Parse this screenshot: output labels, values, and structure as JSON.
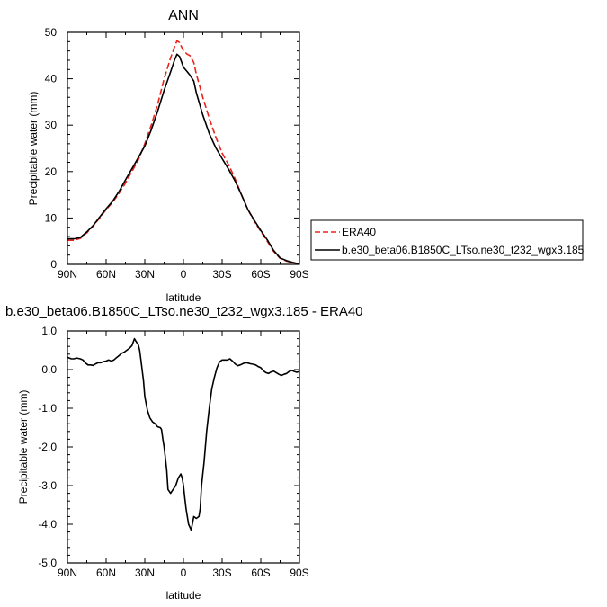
{
  "chart_data": [
    {
      "type": "line",
      "title": "ANN",
      "xlabel": "latitude",
      "ylabel": "Precipitable water (mm)",
      "x_ticks": [
        "90N",
        "60N",
        "30N",
        "0",
        "30S",
        "60S",
        "90S"
      ],
      "y_ticks": [
        "0",
        "10",
        "20",
        "30",
        "40",
        "50"
      ],
      "xlim": [
        90,
        -90
      ],
      "ylim": [
        0,
        50
      ],
      "legend_position": "right",
      "series": [
        {
          "name": "ERA40",
          "color": "#e8231c",
          "dash": "dashed",
          "x": [
            90,
            85,
            80,
            75,
            70,
            65,
            60,
            55,
            50,
            45,
            40,
            35,
            30,
            25,
            20,
            15,
            10,
            7,
            5,
            3,
            0,
            -3,
            -5,
            -8,
            -10,
            -15,
            -20,
            -25,
            -30,
            -35,
            -40,
            -45,
            -50,
            -55,
            -60,
            -65,
            -70,
            -75,
            -80,
            -85,
            -90
          ],
          "y": [
            5.2,
            5.2,
            5.6,
            6.8,
            8.3,
            10.0,
            11.8,
            13.4,
            15.3,
            17.5,
            20.0,
            22.5,
            26.0,
            30.0,
            34.5,
            40.0,
            44.5,
            46.8,
            48.2,
            47.8,
            46.0,
            45.3,
            45.0,
            43.5,
            41.0,
            36.0,
            31.5,
            27.5,
            24.0,
            21.5,
            18.5,
            15.0,
            11.8,
            9.3,
            7.1,
            5.0,
            2.8,
            1.3,
            0.7,
            0.3,
            0.1
          ]
        },
        {
          "name": "b.e30_beta06.B1850C_LTso.ne30_t232_wgx3.185",
          "color": "#000000",
          "dash": "solid",
          "x": [
            90,
            85,
            80,
            75,
            70,
            65,
            60,
            55,
            50,
            45,
            40,
            35,
            30,
            25,
            20,
            15,
            10,
            7,
            5,
            3,
            0,
            -3,
            -5,
            -8,
            -10,
            -15,
            -20,
            -25,
            -30,
            -35,
            -40,
            -45,
            -50,
            -55,
            -60,
            -65,
            -70,
            -75,
            -80,
            -85,
            -90
          ],
          "y": [
            5.5,
            5.5,
            5.8,
            7.0,
            8.4,
            10.2,
            12.0,
            13.6,
            15.7,
            18.2,
            20.6,
            23.0,
            25.5,
            29.0,
            33.0,
            37.5,
            41.5,
            44.0,
            45.3,
            44.8,
            42.5,
            41.5,
            40.8,
            39.5,
            37.0,
            32.2,
            28.2,
            25.2,
            22.8,
            20.5,
            18.0,
            15.0,
            11.8,
            9.5,
            7.3,
            5.3,
            3.0,
            1.4,
            0.8,
            0.4,
            0.1
          ]
        }
      ]
    },
    {
      "type": "line",
      "title": "b.e30_beta06.B1850C_LTso.ne30_t232_wgx3.185 - ERA40",
      "xlabel": "latitude",
      "ylabel": "Precipitable water (mm)",
      "x_ticks": [
        "90N",
        "60N",
        "30N",
        "0",
        "30S",
        "60S",
        "90S"
      ],
      "y_ticks": [
        "-5.0",
        "-4.0",
        "-3.0",
        "-2.0",
        "-1.0",
        "0.0",
        "1.0"
      ],
      "xlim": [
        90,
        -90
      ],
      "ylim": [
        -5,
        1
      ],
      "series": [
        {
          "color": "#000000",
          "dash": "solid",
          "x": [
            90,
            87,
            85,
            83,
            80,
            78,
            76,
            74,
            72,
            70,
            68,
            66,
            64,
            62,
            60,
            58,
            56,
            54,
            52,
            50,
            48,
            46,
            44,
            42,
            40,
            38,
            37,
            35,
            34,
            33,
            31,
            30,
            28,
            26,
            24,
            22,
            20,
            18,
            17,
            16,
            15,
            13,
            12,
            10,
            8,
            6,
            4,
            2,
            1,
            0,
            -1,
            -2,
            -4,
            -6,
            -8,
            -10,
            -12,
            -13,
            -14,
            -16,
            -18,
            -20,
            -22,
            -24,
            -26,
            -28,
            -30,
            -32,
            -34,
            -36,
            -38,
            -40,
            -42,
            -44,
            -46,
            -48,
            -50,
            -52,
            -54,
            -56,
            -58,
            -60,
            -62,
            -64,
            -66,
            -68,
            -70,
            -72,
            -74,
            -76,
            -78,
            -80,
            -82,
            -84,
            -86,
            -88,
            -90
          ],
          "y": [
            0.32,
            0.28,
            0.28,
            0.3,
            0.28,
            0.25,
            0.17,
            0.12,
            0.12,
            0.11,
            0.15,
            0.18,
            0.18,
            0.21,
            0.22,
            0.25,
            0.22,
            0.25,
            0.31,
            0.36,
            0.42,
            0.45,
            0.5,
            0.55,
            0.62,
            0.8,
            0.74,
            0.64,
            0.5,
            0.25,
            -0.3,
            -0.7,
            -1.05,
            -1.25,
            -1.35,
            -1.4,
            -1.48,
            -1.5,
            -1.55,
            -1.8,
            -2.0,
            -2.6,
            -3.1,
            -3.2,
            -3.1,
            -3.0,
            -2.8,
            -2.7,
            -2.8,
            -3.0,
            -3.3,
            -3.6,
            -4.0,
            -4.15,
            -3.8,
            -3.85,
            -3.8,
            -3.6,
            -3.0,
            -2.4,
            -1.6,
            -1.0,
            -0.5,
            -0.2,
            0.05,
            0.2,
            0.25,
            0.25,
            0.25,
            0.28,
            0.22,
            0.15,
            0.1,
            0.12,
            0.15,
            0.18,
            0.17,
            0.15,
            0.14,
            0.12,
            0.08,
            0.05,
            -0.03,
            -0.08,
            -0.1,
            -0.06,
            -0.04,
            -0.08,
            -0.12,
            -0.15,
            -0.12,
            -0.1,
            -0.05,
            -0.02,
            -0.05,
            -0.07,
            -0.05
          ]
        }
      ]
    }
  ]
}
